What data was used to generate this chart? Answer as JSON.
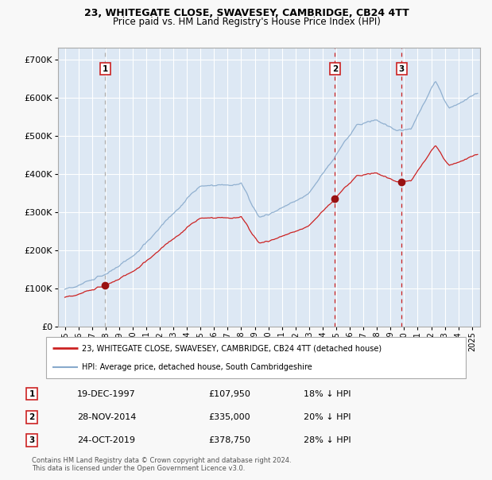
{
  "title1": "23, WHITEGATE CLOSE, SWAVESEY, CAMBRIDGE, CB24 4TT",
  "title2": "Price paid vs. HM Land Registry's House Price Index (HPI)",
  "legend_line1": "23, WHITEGATE CLOSE, SWAVESEY, CAMBRIDGE, CB24 4TT (detached house)",
  "legend_line2": "HPI: Average price, detached house, South Cambridgeshire",
  "sale_color": "#cc2222",
  "hpi_color": "#88aacc",
  "fig_bg": "#f8f8f8",
  "plot_bg": "#dde8f4",
  "vline1_color": "#aaaaaa",
  "vline23_color": "#cc2222",
  "marker_color": "#991111",
  "grid_color": "#ffffff",
  "ann_box_ec": "#cc2222",
  "footer_text": "Contains HM Land Registry data © Crown copyright and database right 2024.\nThis data is licensed under the Open Government Licence v3.0.",
  "sales": [
    {
      "date_num": 1997.97,
      "price": 107950,
      "label": "1",
      "date_str": "19-DEC-1997",
      "pct": "18% ↓ HPI",
      "vline_gray": true
    },
    {
      "date_num": 2014.91,
      "price": 335000,
      "label": "2",
      "date_str": "28-NOV-2014",
      "pct": "20% ↓ HPI",
      "vline_gray": false
    },
    {
      "date_num": 2019.81,
      "price": 378750,
      "label": "3",
      "date_str": "24-OCT-2019",
      "pct": "28% ↓ HPI",
      "vline_gray": false
    }
  ],
  "sale_prices": [
    107950,
    335000,
    378750
  ],
  "sale_dates": [
    1997.97,
    2014.91,
    2019.81
  ],
  "ylim": [
    0,
    730000
  ],
  "xlim_start": 1994.5,
  "xlim_end": 2025.6,
  "yticks": [
    0,
    100000,
    200000,
    300000,
    400000,
    500000,
    600000,
    700000
  ],
  "ytick_labels": [
    "£0",
    "£100K",
    "£200K",
    "£300K",
    "£400K",
    "£500K",
    "£600K",
    "£700K"
  ]
}
